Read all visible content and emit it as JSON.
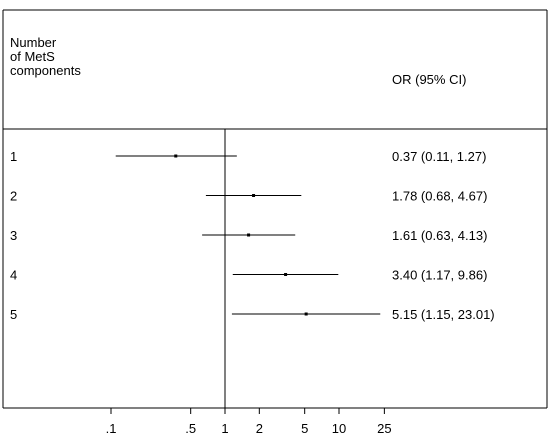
{
  "header": {
    "row_label_lines": [
      "Number",
      "of MetS",
      "components"
    ],
    "estimate_label": "OR (95% CI)"
  },
  "chart_data": {
    "type": "forest",
    "xscale": "log",
    "reference_line": 1,
    "xticks": [
      0.1,
      0.5,
      1,
      2,
      5,
      10,
      25
    ],
    "xtick_labels": [
      ".1",
      ".5",
      "1",
      "2",
      "5",
      "10",
      "25"
    ],
    "rows": [
      {
        "label": "1",
        "or": 0.37,
        "lo": 0.11,
        "hi": 1.27,
        "text": "0.37 (0.11, 1.27)"
      },
      {
        "label": "2",
        "or": 1.78,
        "lo": 0.68,
        "hi": 4.67,
        "text": "1.78 (0.68, 4.67)"
      },
      {
        "label": "3",
        "or": 1.61,
        "lo": 0.63,
        "hi": 4.13,
        "text": "1.61 (0.63, 4.13)"
      },
      {
        "label": "4",
        "or": 3.4,
        "lo": 1.17,
        "hi": 9.86,
        "text": "3.40 (1.17, 9.86)"
      },
      {
        "label": "5",
        "or": 5.15,
        "lo": 1.15,
        "hi": 23.01,
        "text": "5.15 (1.15, 23.01)"
      }
    ]
  }
}
